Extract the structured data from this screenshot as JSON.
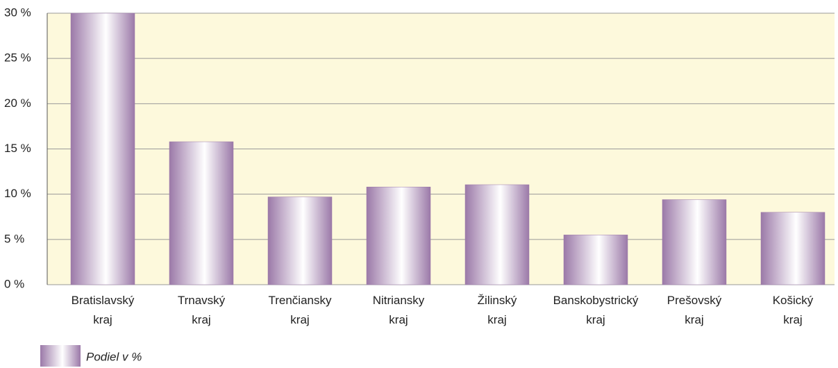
{
  "chart_data": {
    "type": "bar",
    "categories": [
      "Bratislavský\nkraj",
      "Trnavský\nkraj",
      "Trenčiansky\nkraj",
      "Nitriansky\nkraj",
      "Žilinský\nkraj",
      "Banskobystrický\nkraj",
      "Prešovský\nkraj",
      "Košický\nkraj"
    ],
    "series": [
      {
        "name": "Podiel v %",
        "color": "#9b79a8",
        "values": [
          30,
          15.8,
          9.7,
          10.8,
          11.05,
          5.5,
          9.4,
          8.0
        ]
      }
    ],
    "ylim": [
      0,
      30
    ],
    "yticks": [
      {
        "value": 0,
        "label": "0 %"
      },
      {
        "value": 5,
        "label": "5 %"
      },
      {
        "value": 10,
        "label": "10 %"
      },
      {
        "value": 15,
        "label": "15 %"
      },
      {
        "value": 20,
        "label": "20 %"
      },
      {
        "value": 25,
        "label": "25 %"
      },
      {
        "value": 30,
        "label": "30 %"
      }
    ],
    "grid": true,
    "legend": "bottom-left"
  }
}
